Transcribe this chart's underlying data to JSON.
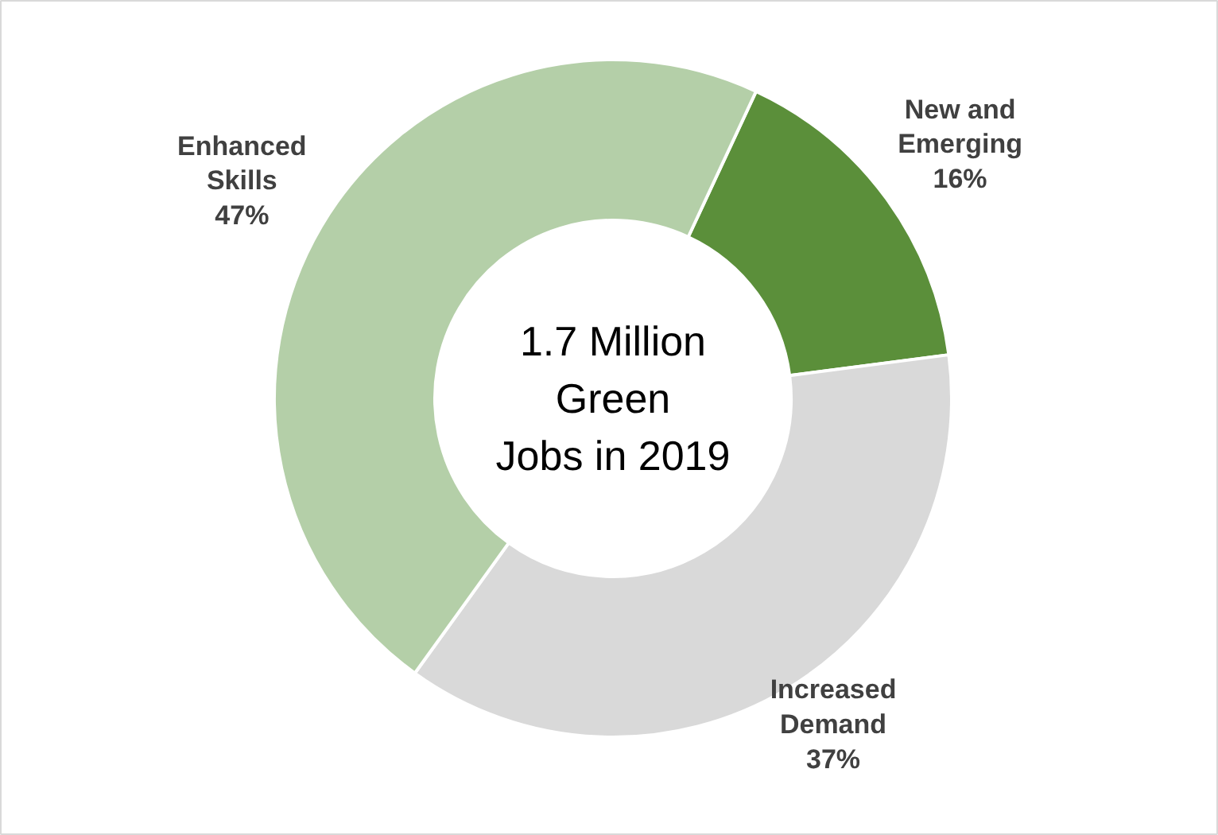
{
  "chart_data": {
    "type": "donut",
    "categories": [
      "New and Emerging",
      "Increased Demand",
      "Enhanced Skills"
    ],
    "values": [
      16,
      37,
      47
    ],
    "colors": [
      "#5b8f3a",
      "#d9d9d9",
      "#b4cfa8"
    ],
    "value_labels": [
      "16%",
      "37%",
      "47%"
    ],
    "annotations": [
      "1.7 Million\nGreen\nJobs in 2019"
    ]
  }
}
